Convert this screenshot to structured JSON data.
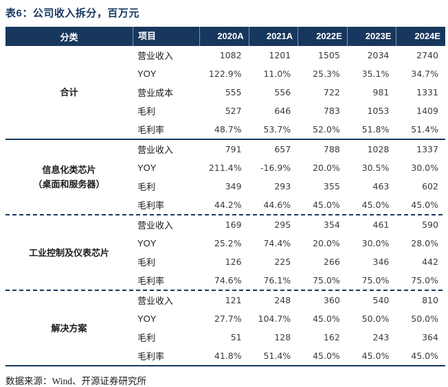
{
  "title": "表6：公司收入拆分，百万元",
  "source_note": "数据来源：Wind、开源证券研究所",
  "colors": {
    "header_navy": "#17375E",
    "divider_navy": "#17375E",
    "header_text": "#FFFFFF",
    "body_text": "#3A3A3A"
  },
  "chart_data": {
    "type": "table",
    "columns": [
      "分类",
      "项目",
      "2020A",
      "2021A",
      "2022E",
      "2023E",
      "2024E"
    ],
    "sections": [
      {
        "category_lines": [
          "合计"
        ],
        "divider_after": "solid",
        "rows": [
          {
            "item": "营业收入",
            "values": [
              "1082",
              "1201",
              "1505",
              "2034",
              "2740"
            ]
          },
          {
            "item": "YOY",
            "values": [
              "122.9%",
              "11.0%",
              "25.3%",
              "35.1%",
              "34.7%"
            ]
          },
          {
            "item": "营业成本",
            "values": [
              "555",
              "556",
              "722",
              "981",
              "1331"
            ]
          },
          {
            "item": "毛利",
            "values": [
              "527",
              "646",
              "783",
              "1053",
              "1409"
            ]
          },
          {
            "item": "毛利率",
            "values": [
              "48.7%",
              "53.7%",
              "52.0%",
              "51.8%",
              "51.4%"
            ]
          }
        ]
      },
      {
        "category_lines": [
          "信息化类芯片",
          "（桌面和服务器）"
        ],
        "divider_after": "dashed",
        "rows": [
          {
            "item": "营业收入",
            "values": [
              "791",
              "657",
              "788",
              "1028",
              "1337"
            ]
          },
          {
            "item": "YOY",
            "values": [
              "211.4%",
              "-16.9%",
              "20.0%",
              "30.5%",
              "30.0%"
            ]
          },
          {
            "item": "毛利",
            "values": [
              "349",
              "293",
              "355",
              "463",
              "602"
            ]
          },
          {
            "item": "毛利率",
            "values": [
              "44.2%",
              "44.6%",
              "45.0%",
              "45.0%",
              "45.0%"
            ]
          }
        ]
      },
      {
        "category_lines": [
          "工业控制及仪表芯片"
        ],
        "divider_after": "dashed",
        "rows": [
          {
            "item": "营业收入",
            "values": [
              "169",
              "295",
              "354",
              "461",
              "590"
            ]
          },
          {
            "item": "YOY",
            "values": [
              "25.2%",
              "74.4%",
              "20.0%",
              "30.0%",
              "28.0%"
            ]
          },
          {
            "item": "毛利",
            "values": [
              "126",
              "225",
              "266",
              "346",
              "442"
            ]
          },
          {
            "item": "毛利率",
            "values": [
              "74.6%",
              "76.1%",
              "75.0%",
              "75.0%",
              "75.0%"
            ]
          }
        ]
      },
      {
        "category_lines": [
          "解决方案"
        ],
        "divider_after": "solid",
        "rows": [
          {
            "item": "营业收入",
            "values": [
              "121",
              "248",
              "360",
              "540",
              "810"
            ]
          },
          {
            "item": "YOY",
            "values": [
              "27.7%",
              "104.7%",
              "45.0%",
              "50.0%",
              "50.0%"
            ]
          },
          {
            "item": "毛利",
            "values": [
              "51",
              "128",
              "162",
              "243",
              "364"
            ]
          },
          {
            "item": "毛利率",
            "values": [
              "41.8%",
              "51.4%",
              "45.0%",
              "45.0%",
              "45.0%"
            ]
          }
        ]
      }
    ]
  }
}
